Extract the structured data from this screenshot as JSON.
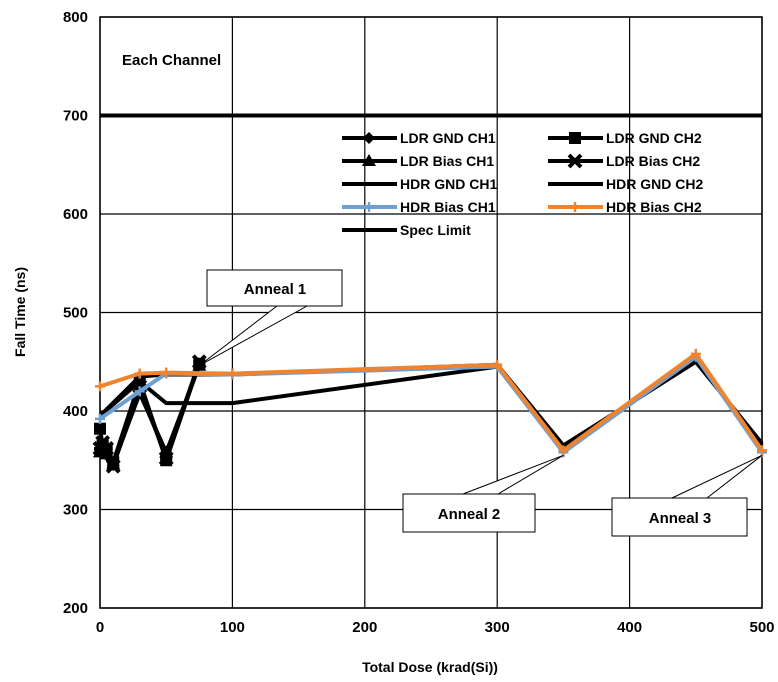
{
  "chart_data": {
    "type": "line",
    "xlabel": "Total Dose (krad(Si))",
    "ylabel": "Fall Time (ns)",
    "xlim": [
      0,
      500
    ],
    "ylim": [
      200,
      800
    ],
    "xticks": [
      0,
      100,
      200,
      300,
      400,
      500
    ],
    "yticks": [
      200,
      300,
      400,
      500,
      600,
      700,
      800
    ],
    "grid": true,
    "legend_position": "upper-right",
    "inner_label": "Each Channel",
    "series": [
      {
        "name": "LDR GND CH1",
        "color": "#000000",
        "marker": "diamond",
        "x": [
          0,
          2,
          5,
          10,
          30,
          50,
          75
        ],
        "y": [
          360,
          358,
          355,
          345,
          420,
          355,
          448
        ]
      },
      {
        "name": "LDR GND CH2",
        "color": "#000000",
        "marker": "square",
        "x": [
          0,
          2,
          5,
          10,
          30,
          50,
          75
        ],
        "y": [
          382,
          365,
          360,
          348,
          430,
          350,
          448
        ]
      },
      {
        "name": "LDR Bias CH1",
        "color": "#000000",
        "marker": "triangle",
        "x": [
          0,
          2,
          5,
          10,
          30,
          50,
          75
        ],
        "y": [
          358,
          360,
          356,
          346,
          418,
          358,
          446
        ]
      },
      {
        "name": "LDR Bias CH2",
        "color": "#000000",
        "marker": "star",
        "x": [
          0,
          2,
          5,
          10,
          30,
          50,
          75
        ],
        "y": [
          362,
          368,
          362,
          344,
          425,
          352,
          450
        ]
      },
      {
        "name": "HDR GND CH1",
        "color": "#000000",
        "marker": "none",
        "x": [
          0,
          30,
          50,
          100,
          300,
          350,
          450,
          500
        ],
        "y": [
          395,
          435,
          437,
          437,
          447,
          365,
          450,
          367
        ]
      },
      {
        "name": "HDR GND CH2",
        "color": "#000000",
        "marker": "none",
        "x": [
          0,
          30,
          50,
          100,
          300,
          350,
          450,
          500
        ],
        "y": [
          395,
          430,
          408,
          408,
          445,
          362,
          452,
          365
        ]
      },
      {
        "name": "HDR Bias CH1",
        "color": "#6E9FD3",
        "marker": "plus",
        "x": [
          0,
          30,
          50,
          100,
          300,
          350,
          450,
          500
        ],
        "y": [
          392,
          420,
          438,
          437,
          445,
          358,
          455,
          358
        ]
      },
      {
        "name": "HDR Bias CH2",
        "color": "#EE8430",
        "marker": "plus",
        "x": [
          0,
          30,
          50,
          100,
          300,
          350,
          450,
          500
        ],
        "y": [
          425,
          438,
          439,
          438,
          447,
          360,
          458,
          360
        ]
      },
      {
        "name": "Spec Limit",
        "color": "#000000",
        "marker": "none",
        "x": [
          0,
          500
        ],
        "y": [
          700,
          700
        ]
      }
    ],
    "annotations": [
      {
        "text": "Anneal 1",
        "point_x": 75,
        "point_y": 440
      },
      {
        "text": "Anneal 2",
        "point_x": 350,
        "point_y": 355
      },
      {
        "text": "Anneal 3",
        "point_x": 500,
        "point_y": 355
      }
    ]
  }
}
